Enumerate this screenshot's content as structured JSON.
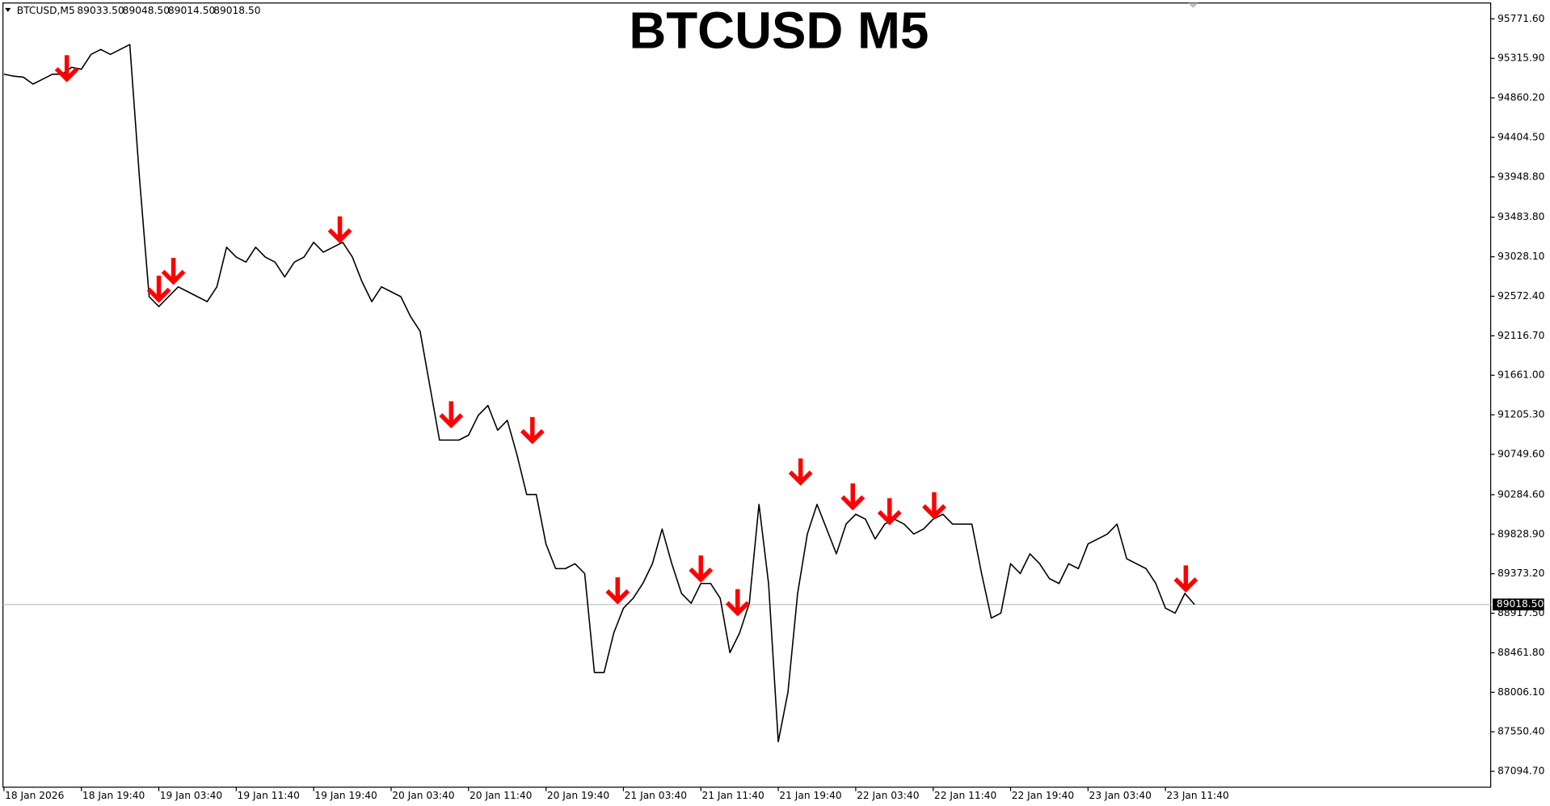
{
  "chart_data": {
    "type": "line",
    "title": "BTCUSD M5",
    "symbol": "BTCUSD,M5",
    "ohlc": [
      {
        "value": 89033.5,
        "label": "89033.50"
      },
      {
        "value": 89048.5,
        "label": "89048.50"
      },
      {
        "value": 89014.5,
        "label": "89014.50"
      },
      {
        "value": 89018.5,
        "label": "89018.50"
      }
    ],
    "last_price": {
      "value": 89018.5,
      "label": "89018.50"
    },
    "categories": [
      "18 Jan 2026",
      null,
      null,
      null,
      null,
      null,
      null,
      null,
      "18 Jan 19:40",
      null,
      null,
      null,
      null,
      null,
      null,
      null,
      "19 Jan 03:40",
      null,
      null,
      null,
      null,
      null,
      null,
      null,
      "19 Jan 11:40",
      null,
      null,
      null,
      null,
      null,
      null,
      null,
      "19 Jan 19:40",
      null,
      null,
      null,
      null,
      null,
      null,
      null,
      "20 Jan 03:40",
      null,
      null,
      null,
      null,
      null,
      null,
      null,
      "20 Jan 11:40",
      null,
      null,
      null,
      null,
      null,
      null,
      null,
      "20 Jan 19:40",
      null,
      null,
      null,
      null,
      null,
      null,
      null,
      "21 Jan 03:40",
      null,
      null,
      null,
      null,
      null,
      null,
      null,
      "21 Jan 11:40",
      null,
      null,
      null,
      null,
      null,
      null,
      null,
      "21 Jan 19:40",
      null,
      null,
      null,
      null,
      null,
      null,
      null,
      "22 Jan 03:40",
      null,
      null,
      null,
      null,
      null,
      null,
      null,
      "22 Jan 11:40",
      null,
      null,
      null,
      null,
      null,
      null,
      null,
      "22 Jan 19:40",
      null,
      null,
      null,
      null,
      null,
      null,
      null,
      "23 Jan 03:40",
      null,
      null,
      null,
      null,
      null,
      null,
      null,
      "23 Jan 11:40",
      null,
      null,
      null
    ],
    "xlim": [
      0,
      153.6
    ],
    "series": [
      {
        "color": "#000000",
        "values": [
          95133,
          95110,
          95099,
          95019,
          95076,
          95133,
          95133,
          95213,
          95190,
          95361,
          95418,
          95361,
          95418,
          95475,
          93936,
          92568,
          92454,
          92568,
          92682,
          92625,
          92568,
          92511,
          92682,
          93138,
          93024,
          92967,
          93138,
          93024,
          92967,
          92796,
          92967,
          93024,
          93195,
          93081,
          93138,
          93195,
          93024,
          92739,
          92511,
          92682,
          92625,
          92568,
          92340,
          92169,
          91541,
          90914,
          90914,
          90914,
          90971,
          91199,
          91313,
          91028,
          91142,
          90743,
          90287,
          90287,
          89717,
          89432,
          89432,
          89489,
          89375,
          88235,
          88235,
          88691,
          88976,
          89090,
          89261,
          89489,
          89888,
          89489,
          89147,
          89033,
          89261,
          89261,
          89090,
          88463,
          88691,
          89033,
          90173,
          89261,
          87437,
          88007,
          89147,
          89831,
          90173,
          89888,
          89603,
          89945,
          90059,
          90002,
          89774,
          89945,
          90002,
          89945,
          89831,
          89888,
          90002,
          90059,
          89945,
          89945,
          89945,
          89375,
          88862,
          88919,
          89489,
          89375,
          89603,
          89489,
          89318,
          89261,
          89489,
          89432,
          89717,
          89774,
          89831,
          89945,
          89546,
          89489,
          89432,
          89261,
          88976,
          88919,
          89147,
          89018.5
        ]
      }
    ],
    "signals": {
      "color": "#ff0000",
      "x": [
        6.5,
        16,
        17.5,
        34.7,
        46.2,
        54.6,
        63.4,
        72,
        75.8,
        82.3,
        87.7,
        91.5,
        96.1,
        122.1
      ],
      "values": [
        95053,
        92511,
        92716,
        93195,
        91062,
        90880,
        89033,
        89284,
        88896,
        90402,
        90116,
        89945,
        90013,
        89170
      ]
    },
    "ylim": [
      86912,
      95954
    ],
    "yticks": [
      {
        "value": 95771.6,
        "label": "95771.60"
      },
      {
        "value": 95315.9,
        "label": "95315.90"
      },
      {
        "value": 94860.2,
        "label": "94860.20"
      },
      {
        "value": 94404.5,
        "label": "94404.50"
      },
      {
        "value": 93948.8,
        "label": "93948.80"
      },
      {
        "value": 93483.8,
        "label": "93483.80"
      },
      {
        "value": 93028.1,
        "label": "93028.10"
      },
      {
        "value": 92572.4,
        "label": "92572.40"
      },
      {
        "value": 92116.7,
        "label": "92116.70"
      },
      {
        "value": 91661,
        "label": "91661.00"
      },
      {
        "value": 91205.3,
        "label": "91205.30"
      },
      {
        "value": 90749.6,
        "label": "90749.60"
      },
      {
        "value": 90284.6,
        "label": "90284.60"
      },
      {
        "value": 89828.9,
        "label": "89828.90"
      },
      {
        "value": 89373.2,
        "label": "89373.20"
      },
      {
        "value": 88917.5,
        "label": "88917.50"
      },
      {
        "value": 88461.8,
        "label": "88461.80"
      },
      {
        "value": 88006.1,
        "label": "88006.10"
      },
      {
        "value": 87550.4,
        "label": "87550.40"
      },
      {
        "value": 87094.7,
        "label": "87094.70"
      }
    ],
    "grid": false
  }
}
